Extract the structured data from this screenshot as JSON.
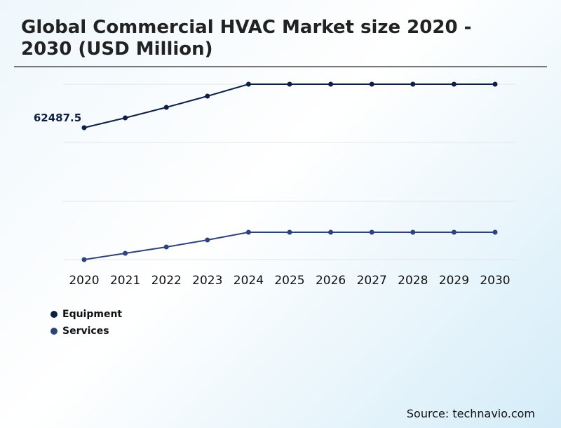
{
  "chart_data": {
    "type": "line",
    "title": "Global Commercial HVAC Market size 2020 - 2030 (USD Million)",
    "categories": [
      "2020",
      "2021",
      "2022",
      "2023",
      "2024",
      "2025",
      "2026",
      "2027",
      "2028",
      "2029",
      "2030"
    ],
    "series": [
      {
        "name": "Equipment",
        "color": "#0d1f45",
        "values": [
          62487.5,
          67140,
          72130,
          77450,
          83100,
          83100,
          83100,
          83100,
          83100,
          83100,
          83100
        ]
      },
      {
        "name": "Services",
        "color": "#2e4377",
        "values": [
          0,
          2990,
          5980,
          9310,
          12960,
          12960,
          12960,
          12960,
          12960,
          12960,
          12960
        ]
      }
    ],
    "annotations": [
      {
        "series": "Equipment",
        "category": "2020",
        "text": "62487.5"
      }
    ],
    "ylim": [
      0,
      83100
    ],
    "grid": true,
    "legend": "bottom-left",
    "source": "Source: technavio.com"
  }
}
